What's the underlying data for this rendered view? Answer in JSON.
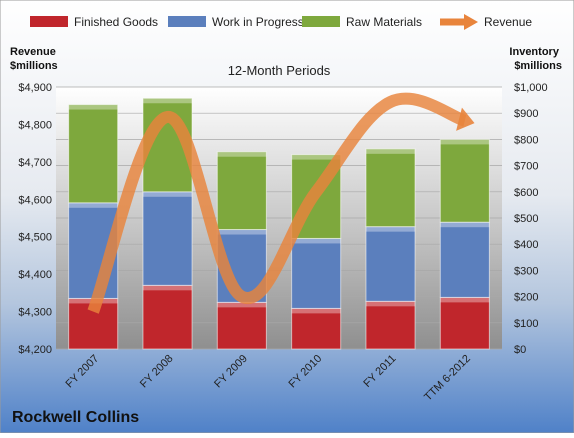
{
  "chart_data": {
    "type": "bar",
    "title": "12-Month Periods",
    "company": "Rockwell Collins",
    "left_axis_label": [
      "Revenue",
      "$millions"
    ],
    "right_axis_label": [
      "Inventory",
      "$millions"
    ],
    "categories": [
      "FY 2007",
      "FY 2008",
      "FY 2009",
      "FY 2010",
      "FY 2011",
      "TTM 6-2012"
    ],
    "stacked": true,
    "series": [
      {
        "name": "Finished Goods",
        "axis": "right",
        "color": "#c0262c",
        "values": [
          193,
          243,
          178,
          155,
          182,
          197
        ]
      },
      {
        "name": "Work in Progress",
        "axis": "right",
        "color": "#5b7fbd",
        "values": [
          365,
          357,
          278,
          267,
          285,
          287
        ]
      },
      {
        "name": "Raw Materials",
        "axis": "right",
        "color": "#7ea83d",
        "values": [
          375,
          357,
          297,
          320,
          297,
          316
        ]
      }
    ],
    "line_series": {
      "name": "Revenue",
      "axis": "left",
      "color": "#e8843c",
      "values": [
        4300,
        4820,
        4340,
        4620,
        4860,
        4810
      ]
    },
    "left_axis": {
      "min": 4200,
      "max": 4900,
      "step": 100,
      "tick_labels": [
        "$4,200",
        "$4,300",
        "$4,400",
        "$4,500",
        "$4,600",
        "$4,700",
        "$4,800",
        "$4,900"
      ]
    },
    "right_axis": {
      "min": 0,
      "max": 1000,
      "step": 100,
      "tick_labels": [
        "$0",
        "$100",
        "$200",
        "$300",
        "$400",
        "$500",
        "$600",
        "$700",
        "$800",
        "$900",
        "$1,000"
      ]
    },
    "legend_position": "top",
    "grid": true
  }
}
